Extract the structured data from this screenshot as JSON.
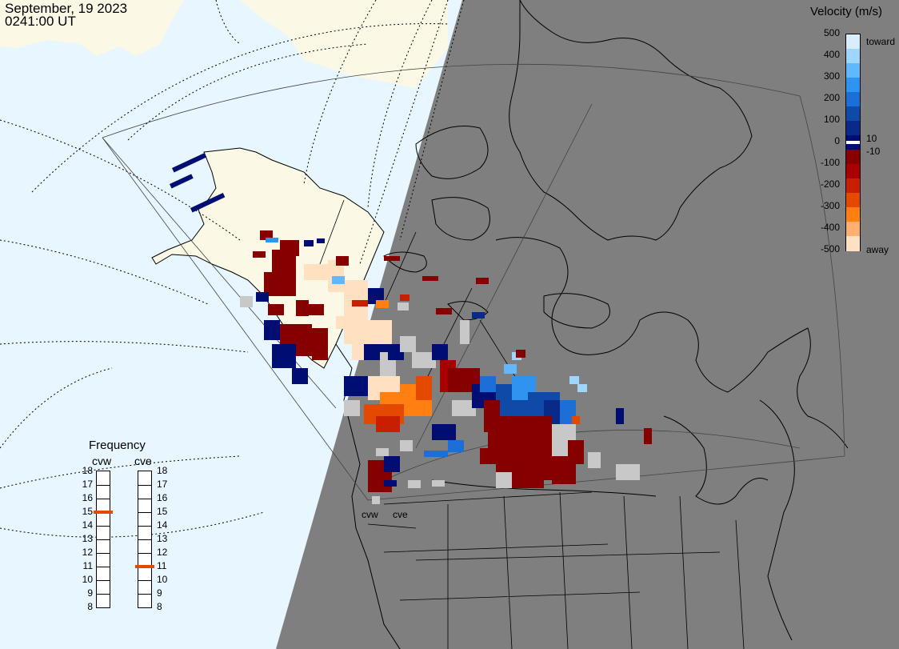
{
  "header": {
    "date": "September, 19 2023",
    "time": "0241:00 UT"
  },
  "legend": {
    "title": "Velocity (m/s)",
    "ticks": [
      "500",
      "400",
      "300",
      "200",
      "100",
      "0",
      "-100",
      "-200",
      "-300",
      "-400",
      "-500"
    ],
    "label_toward": "toward",
    "label_away": "away",
    "label_pos": "10",
    "label_neg": "-10",
    "colors": [
      "#d8eeff",
      "#9fd6ff",
      "#62b8ff",
      "#2f93f0",
      "#1c6fd6",
      "#0f4aa8",
      "#0a2a8a",
      "#000e73",
      "#870000",
      "#a80000",
      "#c81f00",
      "#e34a00",
      "#ff7f10",
      "#ffb070",
      "#ffe0c0"
    ]
  },
  "frequency": {
    "title": "Frequency",
    "radars": [
      {
        "name": "cvw",
        "freq": 15
      },
      {
        "name": "cve",
        "freq": 11
      }
    ],
    "scale": [
      "18",
      "17",
      "16",
      "15",
      "14",
      "13",
      "12",
      "11",
      "10",
      "9",
      "8"
    ],
    "marker_color": "#e34a00"
  },
  "map": {
    "radar_sites": [
      "cvw",
      "cve"
    ],
    "colors": {
      "ocean_day": "#e8f6ff",
      "land_day": "#fbf8e6",
      "night": "#7f7f7f",
      "outline": "#000000",
      "ground_scatter": "#c8c8c8"
    }
  }
}
